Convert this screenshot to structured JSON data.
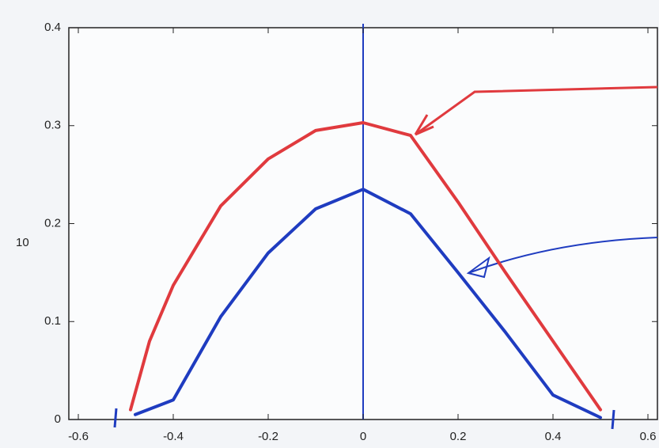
{
  "chart_data": {
    "type": "line",
    "ylabel": "10",
    "xlim": [
      -0.62,
      0.62
    ],
    "ylim": [
      0,
      0.4
    ],
    "xticks": [
      -0.6,
      -0.4,
      -0.2,
      0,
      0.2,
      0.4,
      0.6
    ],
    "yticks": [
      0,
      0.1,
      0.2,
      0.3,
      0.4
    ],
    "grid": false,
    "series": [
      {
        "color": "#e03a3e",
        "x": [
          -0.49,
          -0.45,
          -0.4,
          -0.3,
          -0.2,
          -0.1,
          0,
          0.1,
          0.2,
          0.3,
          0.4,
          0.5
        ],
        "values": [
          0.01,
          0.08,
          0.137,
          0.218,
          0.266,
          0.295,
          0.303,
          0.29,
          0.222,
          0.15,
          0.08,
          0.01
        ]
      },
      {
        "color": "#1f3cc0",
        "x": [
          -0.48,
          -0.4,
          -0.3,
          -0.2,
          -0.1,
          0,
          0.1,
          0.2,
          0.3,
          0.4,
          0.5
        ],
        "values": [
          0.005,
          0.02,
          0.105,
          0.17,
          0.215,
          0.235,
          0.21,
          0.15,
          0.089,
          0.025,
          0.002
        ]
      }
    ]
  }
}
